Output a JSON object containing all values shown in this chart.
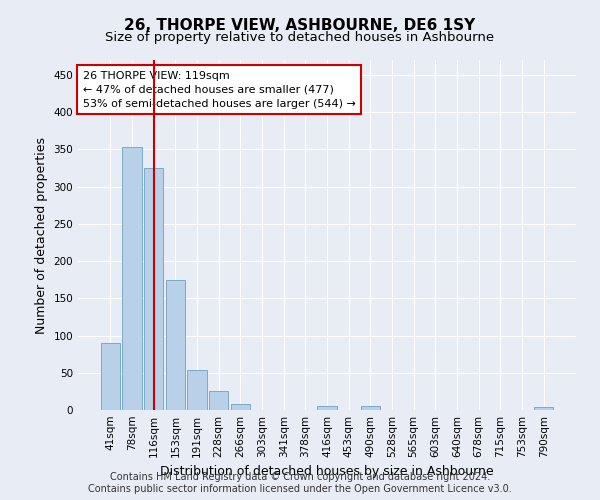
{
  "title": "26, THORPE VIEW, ASHBOURNE, DE6 1SY",
  "subtitle": "Size of property relative to detached houses in Ashbourne",
  "xlabel": "Distribution of detached houses by size in Ashbourne",
  "ylabel": "Number of detached properties",
  "categories": [
    "41sqm",
    "78sqm",
    "116sqm",
    "153sqm",
    "191sqm",
    "228sqm",
    "266sqm",
    "303sqm",
    "341sqm",
    "378sqm",
    "416sqm",
    "453sqm",
    "490sqm",
    "528sqm",
    "565sqm",
    "603sqm",
    "640sqm",
    "678sqm",
    "715sqm",
    "753sqm",
    "790sqm"
  ],
  "values": [
    90,
    353,
    325,
    175,
    54,
    25,
    8,
    0,
    0,
    0,
    5,
    0,
    6,
    0,
    0,
    0,
    0,
    0,
    0,
    0,
    4
  ],
  "bar_color": "#b8d0e8",
  "bar_edge_color": "#7aaac8",
  "vline_x": 2,
  "vline_color": "#cc0000",
  "annotation_text": "26 THORPE VIEW: 119sqm\n← 47% of detached houses are smaller (477)\n53% of semi-detached houses are larger (544) →",
  "annotation_box_color": "#ffffff",
  "annotation_box_edge_color": "#cc0000",
  "ylim": [
    0,
    470
  ],
  "yticks": [
    0,
    50,
    100,
    150,
    200,
    250,
    300,
    350,
    400,
    450
  ],
  "bg_color": "#e8edf5",
  "plot_bg_color": "#e8edf5",
  "footer_text": "Contains HM Land Registry data © Crown copyright and database right 2024.\nContains public sector information licensed under the Open Government Licence v3.0.",
  "title_fontsize": 11,
  "subtitle_fontsize": 9.5,
  "xlabel_fontsize": 9,
  "ylabel_fontsize": 9,
  "grid_color": "#ffffff",
  "tick_label_fontsize": 7.5,
  "footer_fontsize": 7
}
